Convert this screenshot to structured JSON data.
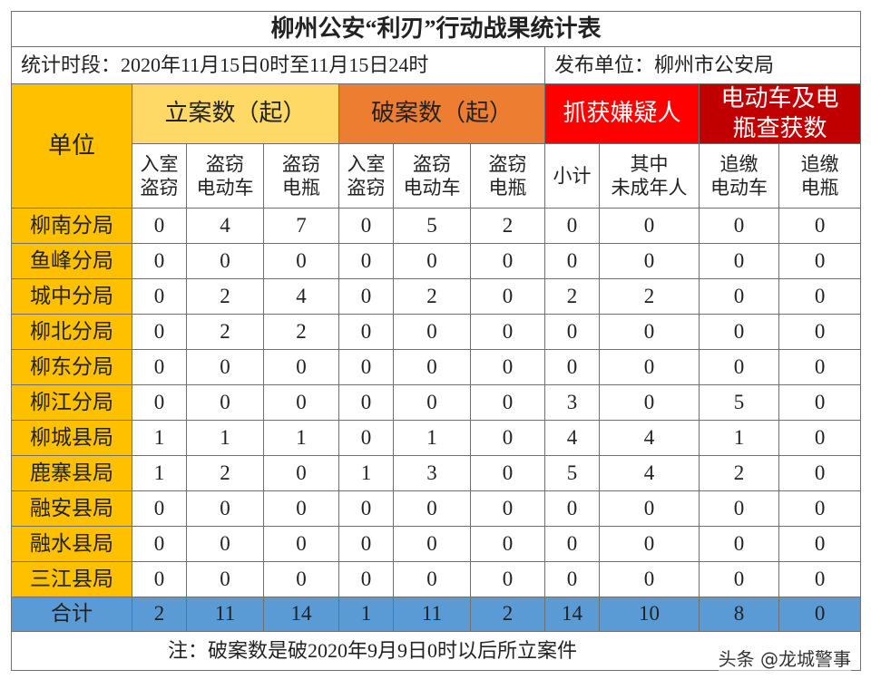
{
  "title": "柳州公安“利刃”行动战果统计表",
  "period": "统计时段：2020年11月15日0时至11月15日24时",
  "publisher": "发布单位：柳州市公安局",
  "table": {
    "unit_header": "单位",
    "groups": [
      {
        "label": "立案数（起）",
        "columns": [
          "入室\n盗窃",
          "盗窃\n电动车",
          "盗窃\n电瓶"
        ]
      },
      {
        "label": "破案数（起）",
        "columns": [
          "入室\n盗窃",
          "盗窃\n电动车",
          "盗窃\n电瓶"
        ]
      },
      {
        "label": "抓获嫌疑人",
        "columns": [
          "小计",
          "其中\n未成年人"
        ]
      },
      {
        "label": "电动车及电\n瓶查获数",
        "columns": [
          "追缴\n电动车",
          "追缴\n电瓶"
        ]
      }
    ],
    "rows": [
      {
        "unit": "柳南分局",
        "values": [
          0,
          4,
          7,
          0,
          5,
          2,
          0,
          0,
          0,
          0
        ]
      },
      {
        "unit": "鱼峰分局",
        "values": [
          0,
          0,
          0,
          0,
          0,
          0,
          0,
          0,
          0,
          0
        ]
      },
      {
        "unit": "城中分局",
        "values": [
          0,
          2,
          4,
          0,
          2,
          0,
          2,
          2,
          0,
          0
        ]
      },
      {
        "unit": "柳北分局",
        "values": [
          0,
          2,
          2,
          0,
          0,
          0,
          0,
          0,
          0,
          0
        ]
      },
      {
        "unit": "柳东分局",
        "values": [
          0,
          0,
          0,
          0,
          0,
          0,
          0,
          0,
          0,
          0
        ]
      },
      {
        "unit": "柳江分局",
        "values": [
          0,
          0,
          0,
          0,
          0,
          0,
          3,
          0,
          5,
          0
        ]
      },
      {
        "unit": "柳城县局",
        "values": [
          1,
          1,
          1,
          0,
          1,
          0,
          4,
          4,
          1,
          0
        ]
      },
      {
        "unit": "鹿寨县局",
        "values": [
          1,
          2,
          0,
          1,
          3,
          0,
          5,
          4,
          2,
          0
        ]
      },
      {
        "unit": "融安县局",
        "values": [
          0,
          0,
          0,
          0,
          0,
          0,
          0,
          0,
          0,
          0
        ]
      },
      {
        "unit": "融水县局",
        "values": [
          0,
          0,
          0,
          0,
          0,
          0,
          0,
          0,
          0,
          0
        ]
      },
      {
        "unit": "三江县局",
        "values": [
          0,
          0,
          0,
          0,
          0,
          0,
          0,
          0,
          0,
          0
        ]
      }
    ],
    "total": {
      "label": "合计",
      "values": [
        2,
        11,
        14,
        1,
        11,
        2,
        14,
        10,
        8,
        0
      ]
    }
  },
  "note": "注：破案数是破2020年9月9日0时以后所立案件",
  "source": "头条 @龙城警事"
}
